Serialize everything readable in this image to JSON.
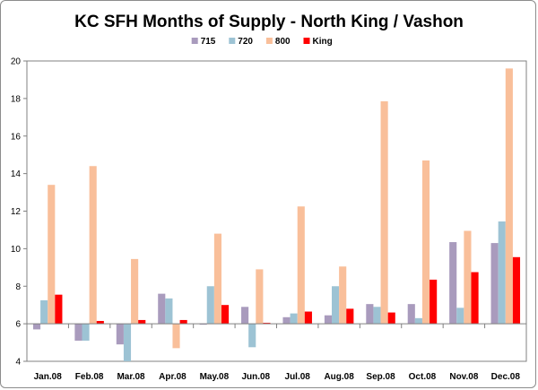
{
  "chart_data": {
    "type": "bar",
    "title": "KC SFH Months of Supply - North King / Vashon",
    "xlabel": "",
    "ylabel": "",
    "categories": [
      "Jan.08",
      "Feb.08",
      "Mar.08",
      "Apr.08",
      "May.08",
      "Jun.08",
      "Jul.08",
      "Aug.08",
      "Sep.08",
      "Oct.08",
      "Nov.08",
      "Dec.08"
    ],
    "ylim": [
      4,
      20
    ],
    "baseline": 6,
    "yticks": [
      "4",
      "6",
      "8",
      "10",
      "12",
      "14",
      "16",
      "18",
      "20"
    ],
    "grid": false,
    "legend_position": "top",
    "series": [
      {
        "name": "715",
        "color": "#a99bbd",
        "values": [
          5.7,
          5.1,
          4.9,
          7.6,
          5.95,
          6.9,
          6.35,
          6.45,
          7.05,
          7.05,
          10.35,
          10.3
        ]
      },
      {
        "name": "720",
        "color": "#9dc3d4",
        "values": [
          7.25,
          5.1,
          4.0,
          7.35,
          8.0,
          4.75,
          6.55,
          8.0,
          6.9,
          6.3,
          6.85,
          11.45
        ]
      },
      {
        "name": "800",
        "color": "#f9bf9a",
        "values": [
          13.4,
          14.4,
          9.45,
          4.7,
          10.8,
          8.9,
          12.25,
          9.05,
          17.85,
          14.7,
          10.95,
          19.6
        ]
      },
      {
        "name": "King",
        "color": "#ff0000",
        "values": [
          7.55,
          6.15,
          6.2,
          6.2,
          7.0,
          6.05,
          6.65,
          6.8,
          6.6,
          8.35,
          8.75,
          9.55
        ]
      }
    ]
  }
}
